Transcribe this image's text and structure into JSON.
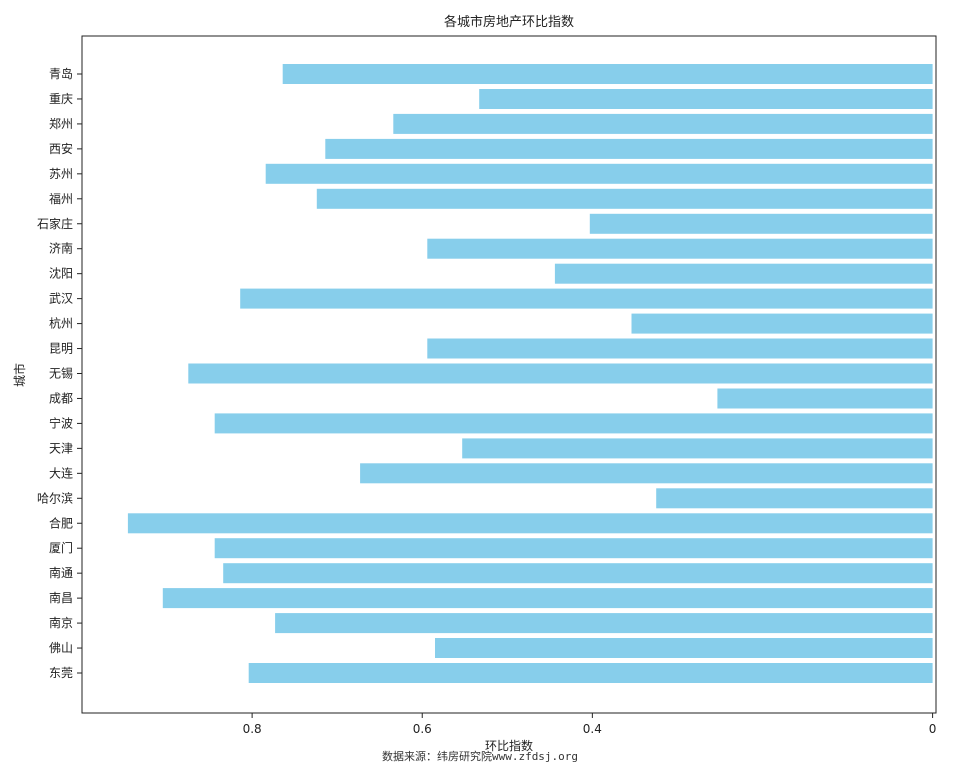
{
  "chart_data": {
    "type": "bar",
    "orientation": "horizontal",
    "title": "各城市房地产环比指数",
    "xlabel": "环比指数",
    "ylabel": "城市",
    "categories": [
      "东莞",
      "佛山",
      "南京",
      "南昌",
      "南通",
      "厦门",
      "合肥",
      "哈尔滨",
      "大连",
      "天津",
      "宁波",
      "成都",
      "无锡",
      "昆明",
      "杭州",
      "武汉",
      "沈阳",
      "济南",
      "石家庄",
      "福州",
      "苏州",
      "西安",
      "郑州",
      "重庆",
      "青岛"
    ],
    "values": [
      0.804,
      0.585,
      0.773,
      0.905,
      0.834,
      0.844,
      0.946,
      0.325,
      0.673,
      0.553,
      0.844,
      0.253,
      0.875,
      0.594,
      0.354,
      0.814,
      0.444,
      0.594,
      0.403,
      0.724,
      0.784,
      0.714,
      0.634,
      0.533,
      0.764
    ],
    "xlim": [
      1.0,
      -0.004
    ],
    "x_inverted": true,
    "xticks": [
      0.8,
      0.6,
      0.4,
      0.0
    ],
    "xtick_labels": [
      "0.8",
      "0.6",
      "0.4",
      "0"
    ],
    "bar_color": "#87ceeb",
    "grid": false,
    "legend": "none"
  },
  "source_note": "数据来源：纬房研究院www.zfdsj.org"
}
